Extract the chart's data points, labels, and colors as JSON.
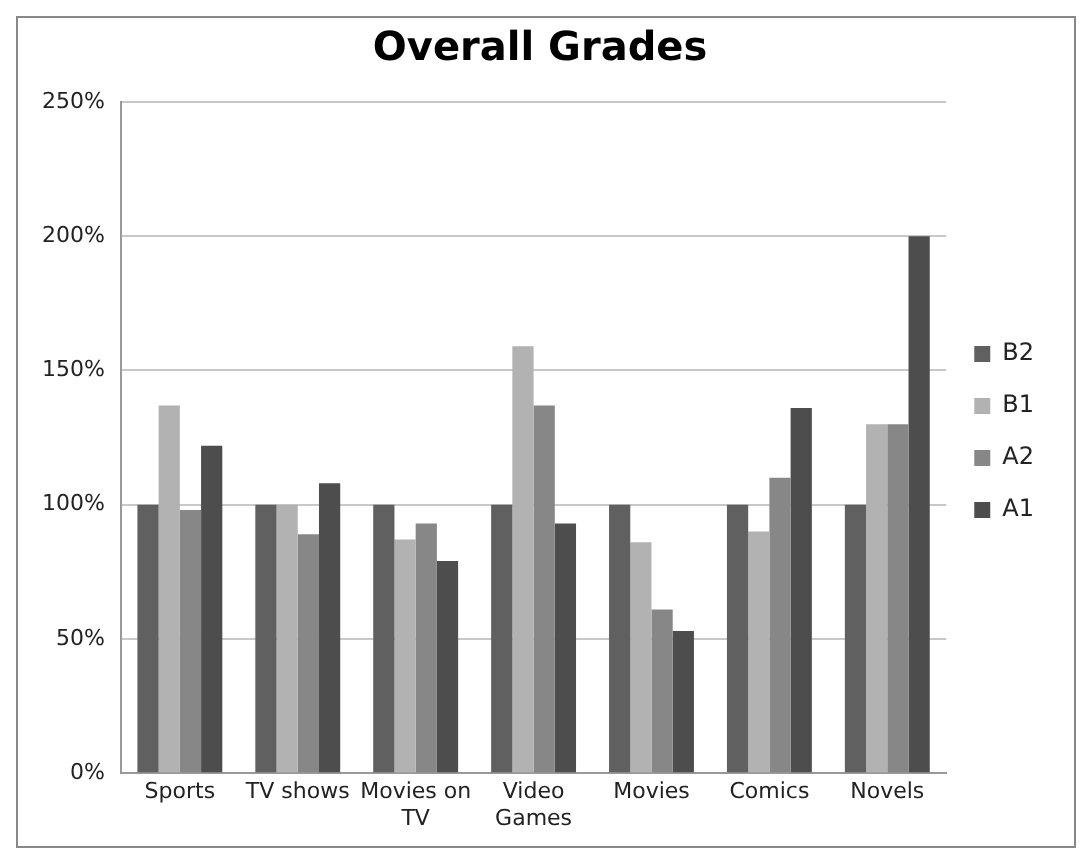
{
  "chart_data": {
    "type": "bar",
    "title": "Overall Grades",
    "categories": [
      "Sports",
      "TV shows",
      "Movies on TV",
      "Video Games",
      "Movies",
      "Comics",
      "Novels"
    ],
    "series": [
      {
        "name": "B2",
        "color": "#606060",
        "values": [
          100,
          100,
          100,
          100,
          100,
          100,
          100
        ]
      },
      {
        "name": "B1",
        "color": "#b2b2b2",
        "values": [
          137,
          100,
          87,
          159,
          86,
          90,
          130
        ]
      },
      {
        "name": "A2",
        "color": "#878787",
        "values": [
          98,
          89,
          93,
          137,
          61,
          110,
          130
        ]
      },
      {
        "name": "A1",
        "color": "#4d4d4d",
        "values": [
          122,
          108,
          79,
          93,
          53,
          136,
          200
        ]
      }
    ],
    "ylim": [
      0,
      250
    ],
    "yticks": [
      {
        "value": 0,
        "label": "0%"
      },
      {
        "value": 50,
        "label": "50%"
      },
      {
        "value": 100,
        "label": "100%"
      },
      {
        "value": 150,
        "label": "150%"
      },
      {
        "value": 200,
        "label": "200%"
      },
      {
        "value": 250,
        "label": "250%"
      }
    ],
    "grid": "y",
    "legend": "right"
  }
}
